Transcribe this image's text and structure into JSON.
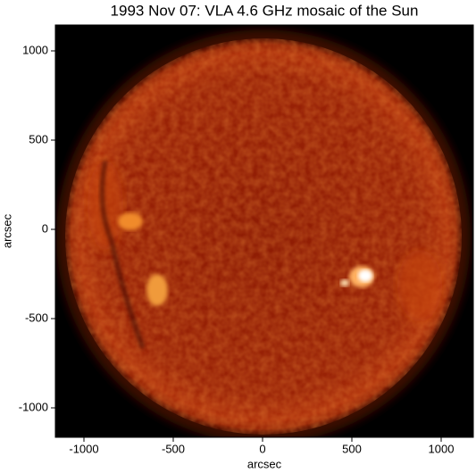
{
  "chart_data": {
    "type": "image",
    "title": "1993 Nov 07: VLA 4.6 GHz mosaic of the Sun",
    "xlabel": "arcsec",
    "ylabel": "arcsec",
    "xlim": [
      -1160,
      1180
    ],
    "ylim": [
      -1165,
      1145
    ],
    "xticks": [
      -1000,
      -500,
      0,
      500,
      1000
    ],
    "yticks": [
      -1000,
      -500,
      0,
      500,
      1000
    ]
  }
}
